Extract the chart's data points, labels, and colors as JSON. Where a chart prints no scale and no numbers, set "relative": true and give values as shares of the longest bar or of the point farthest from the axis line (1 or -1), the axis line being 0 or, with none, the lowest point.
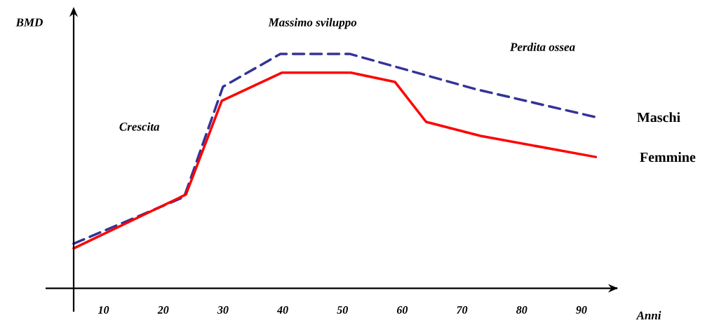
{
  "chart_data": {
    "type": "line",
    "relative": true,
    "xlabel": "Anni",
    "ylabel": "BMD",
    "xlim": [
      5,
      96
    ],
    "xticks": [
      10,
      20,
      30,
      40,
      50,
      60,
      70,
      80,
      90
    ],
    "series": [
      {
        "name": "Maschi",
        "color": "#333399",
        "line_style": "dashed",
        "x": [
          5,
          23.5,
          30,
          39.6,
          51.2,
          58.2,
          72.2,
          92.4
        ],
        "values": [
          0.19,
          0.39,
          0.86,
          1,
          1,
          0.95,
          0.85,
          0.73
        ]
      },
      {
        "name": "Femmine",
        "color": "#ff0000",
        "line_style": "solid",
        "x": [
          5,
          23.8,
          29.8,
          39.9,
          51.4,
          58.8,
          64,
          73.1,
          92.4
        ],
        "values": [
          0.17,
          0.4,
          0.8,
          0.92,
          0.92,
          0.88,
          0.71,
          0.65,
          0.56
        ]
      }
    ],
    "annotations": [
      "Crescita",
      "Massimo sviluppo",
      "Perdita ossea"
    ],
    "marker": "none",
    "legend": false
  }
}
